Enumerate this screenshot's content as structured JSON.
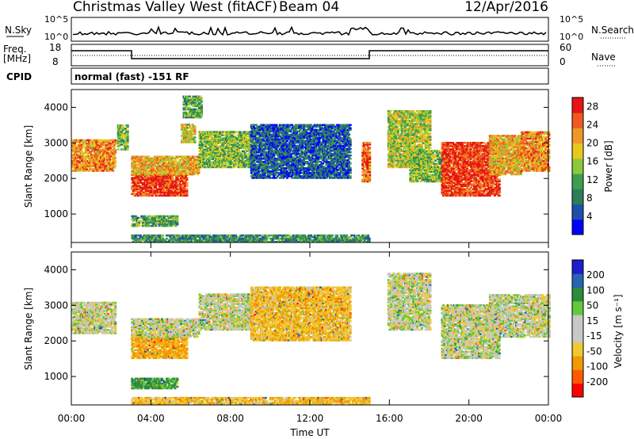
{
  "header": {
    "title": "Christmas Valley West (fitACF)",
    "beam": "Beam 04",
    "date": "12/Apr/2016"
  },
  "noise_panel": {
    "left_label": "N.Sky",
    "right_label": "N.Search",
    "left_ticks": [
      "10^5",
      "10^0"
    ],
    "right_ticks": [
      "10^5",
      "10^0"
    ]
  },
  "freq_panel": {
    "left_label_top": "Freq.",
    "left_label_bottom": "[MHz]",
    "right_label": "Nave",
    "left_ticks": [
      "18",
      "8"
    ],
    "right_ticks": [
      "60",
      "0"
    ]
  },
  "cpid": {
    "label": "CPID",
    "value": "normal (fast) -151 RF"
  },
  "colors": {
    "power_scale": [
      "#0000ff",
      "#1f4faa",
      "#2e7d5a",
      "#3aa050",
      "#8cc83c",
      "#e6c81e",
      "#f0962a",
      "#f05a1e",
      "#e61414"
    ],
    "velocity_scale": [
      "#ff0000",
      "#ff5a00",
      "#f09a00",
      "#f0c830",
      "#c8c8c8",
      "#c8c8c8",
      "#64c83c",
      "#2d8c3c",
      "#2864b4",
      "#1e1ec8"
    ]
  },
  "chart_data": [
    {
      "type": "heatmap",
      "name": "power",
      "xlabel": "Time UT",
      "ylabel": "Slant Range [km]",
      "xlim": [
        0,
        24
      ],
      "ylim": [
        200,
        4500
      ],
      "x_ticks": [
        "00:00",
        "04:00",
        "08:00",
        "12:00",
        "16:00",
        "20:00",
        "00:00"
      ],
      "y_ticks": [
        "1000",
        "2000",
        "3000",
        "4000"
      ],
      "colorbar": {
        "label": "Power [dB]",
        "ticks": [
          "4",
          "8",
          "12",
          "16",
          "20",
          "24",
          "28"
        ],
        "range": [
          0,
          30
        ]
      },
      "regions": [
        {
          "t0": 0.0,
          "t1": 2.2,
          "r0": 2200,
          "r1": 3100,
          "p": 22
        },
        {
          "t0": 2.3,
          "t1": 2.8,
          "r0": 2800,
          "r1": 3500,
          "p": 14
        },
        {
          "t0": 3.0,
          "t1": 5.8,
          "r0": 1500,
          "r1": 2200,
          "p": 27
        },
        {
          "t0": 3.0,
          "t1": 6.4,
          "r0": 2100,
          "r1": 2600,
          "p": 20
        },
        {
          "t0": 3.0,
          "t1": 5.3,
          "r0": 650,
          "r1": 950,
          "p": 12
        },
        {
          "t0": 5.5,
          "t1": 6.2,
          "r0": 3000,
          "r1": 3500,
          "p": 18
        },
        {
          "t0": 5.6,
          "t1": 6.5,
          "r0": 3700,
          "r1": 4300,
          "p": 12
        },
        {
          "t0": 6.4,
          "t1": 9.0,
          "r0": 2300,
          "r1": 3300,
          "p": 14
        },
        {
          "t0": 9.0,
          "t1": 14.0,
          "r0": 2000,
          "r1": 3500,
          "p": 6
        },
        {
          "t0": 14.6,
          "t1": 15.0,
          "r0": 1900,
          "r1": 3000,
          "p": 24
        },
        {
          "t0": 3.0,
          "t1": 15.0,
          "r0": 200,
          "r1": 400,
          "p": 10
        },
        {
          "t0": 15.9,
          "t1": 18.0,
          "r0": 2300,
          "r1": 3900,
          "p": 16
        },
        {
          "t0": 17.0,
          "t1": 18.8,
          "r0": 1900,
          "r1": 2800,
          "p": 14
        },
        {
          "t0": 18.6,
          "t1": 21.5,
          "r0": 1500,
          "r1": 3000,
          "p": 27
        },
        {
          "t0": 21.0,
          "t1": 22.6,
          "r0": 2100,
          "r1": 3200,
          "p": 20
        },
        {
          "t0": 22.6,
          "t1": 24.0,
          "r0": 2200,
          "r1": 3300,
          "p": 22
        }
      ]
    },
    {
      "type": "heatmap",
      "name": "velocity",
      "xlabel": "Time UT",
      "ylabel": "Slant Range [km]",
      "xlim": [
        0,
        24
      ],
      "ylim": [
        200,
        4500
      ],
      "x_ticks": [
        "00:00",
        "04:00",
        "08:00",
        "12:00",
        "16:00",
        "20:00",
        "00:00"
      ],
      "y_ticks": [
        "1000",
        "2000",
        "3000",
        "4000"
      ],
      "colorbar": {
        "label": "Velocity [m s⁻¹]",
        "ticks": [
          "200",
          "100",
          "50",
          "15",
          "-15",
          "-50",
          "-100",
          "-200"
        ],
        "range": [
          -250,
          250
        ]
      },
      "regions": [
        {
          "t0": 0.0,
          "t1": 2.2,
          "r0": 2200,
          "r1": 3100,
          "v": 0
        },
        {
          "t0": 3.0,
          "t1": 5.8,
          "r0": 1500,
          "r1": 2200,
          "v": -60
        },
        {
          "t0": 3.0,
          "t1": 6.4,
          "r0": 2100,
          "r1": 2600,
          "v": 0
        },
        {
          "t0": 3.0,
          "t1": 5.3,
          "r0": 650,
          "r1": 950,
          "v": 60
        },
        {
          "t0": 6.4,
          "t1": 9.0,
          "r0": 2300,
          "r1": 3300,
          "v": 0
        },
        {
          "t0": 9.0,
          "t1": 14.0,
          "r0": 2000,
          "r1": 3500,
          "v": -40
        },
        {
          "t0": 3.0,
          "t1": 15.0,
          "r0": 200,
          "r1": 400,
          "v": -40
        },
        {
          "t0": 15.9,
          "t1": 18.0,
          "r0": 2300,
          "r1": 3900,
          "v": 0
        },
        {
          "t0": 18.6,
          "t1": 21.5,
          "r0": 1500,
          "r1": 3000,
          "v": 0
        },
        {
          "t0": 21.0,
          "t1": 24.0,
          "r0": 2100,
          "r1": 3300,
          "v": 0
        }
      ]
    }
  ]
}
